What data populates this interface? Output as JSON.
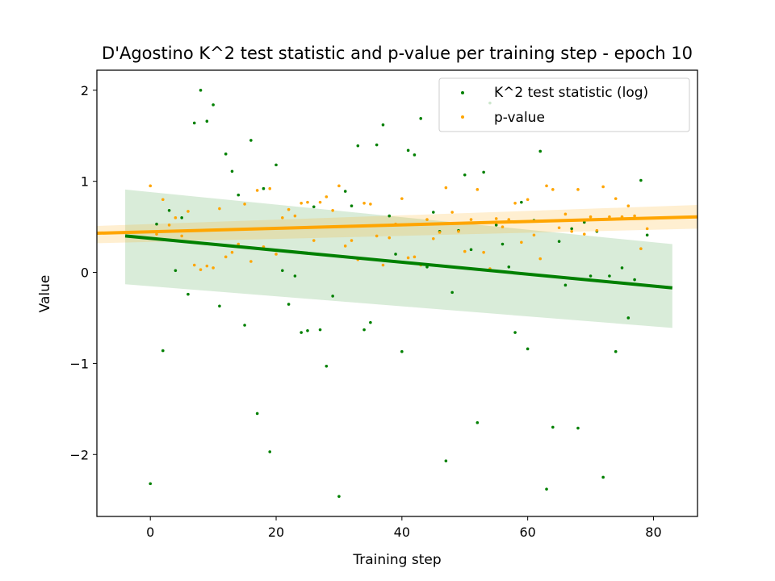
{
  "chart_data": {
    "type": "scatter",
    "title": "D'Agostino K^2 test statistic and p-value per training step - epoch 10",
    "xlabel": "Training step",
    "ylabel": "Value",
    "xlim": [
      -8.5,
      87
    ],
    "ylim": [
      -2.68,
      2.22
    ],
    "xticks": [
      0,
      20,
      40,
      60,
      80
    ],
    "xtick_labels": [
      "0",
      "20",
      "40",
      "60",
      "80"
    ],
    "yticks": [
      -2,
      -1,
      0,
      1,
      2
    ],
    "ytick_labels": [
      "−2",
      "−1",
      "0",
      "1",
      "2"
    ],
    "grid": false,
    "legend_position": "top-right",
    "series": [
      {
        "name": "K^2 test statistic (log)",
        "color": "#008000",
        "marker": "point",
        "x": [
          0,
          1,
          2,
          3,
          4,
          5,
          6,
          7,
          8,
          9,
          10,
          11,
          12,
          13,
          14,
          15,
          16,
          17,
          18,
          19,
          20,
          21,
          22,
          23,
          24,
          25,
          26,
          27,
          28,
          29,
          30,
          31,
          32,
          33,
          34,
          35,
          36,
          37,
          38,
          39,
          40,
          41,
          42,
          43,
          44,
          45,
          46,
          47,
          48,
          49,
          50,
          51,
          52,
          53,
          54,
          55,
          56,
          57,
          58,
          59,
          60,
          61,
          62,
          63,
          64,
          65,
          66,
          67,
          68,
          69,
          70,
          71,
          72,
          73,
          74,
          75,
          76,
          77,
          78,
          79
        ],
        "y": [
          -2.32,
          0.53,
          -0.86,
          0.68,
          0.02,
          0.6,
          -0.24,
          1.64,
          2.0,
          1.66,
          1.84,
          -0.37,
          1.3,
          1.11,
          0.85,
          -0.58,
          1.45,
          -1.55,
          0.92,
          -1.97,
          1.18,
          0.02,
          -0.35,
          -0.04,
          -0.66,
          -0.64,
          0.72,
          -0.63,
          -1.03,
          -0.26,
          -2.46,
          0.89,
          0.73,
          1.39,
          -0.63,
          -0.55,
          1.4,
          1.62,
          0.62,
          0.2,
          -0.87,
          1.34,
          1.29,
          1.69,
          0.06,
          0.66,
          0.45,
          -2.07,
          -0.22,
          0.46,
          1.07,
          0.25,
          -1.65,
          1.1,
          1.86,
          0.52,
          0.31,
          0.06,
          -0.66,
          0.77,
          -0.84,
          0.57,
          1.33,
          -2.38,
          -1.7,
          0.34,
          -0.14,
          0.48,
          -1.71,
          0.55,
          -0.04,
          0.45,
          -2.25,
          -0.04,
          -0.87,
          0.05,
          -0.5,
          -0.08,
          1.01,
          0.41
        ]
      },
      {
        "name": "p-value",
        "color": "#FFA500",
        "marker": "point",
        "x": [
          0,
          1,
          2,
          3,
          4,
          5,
          6,
          7,
          8,
          9,
          10,
          11,
          12,
          13,
          14,
          15,
          16,
          17,
          18,
          19,
          20,
          21,
          22,
          23,
          24,
          25,
          26,
          27,
          28,
          29,
          30,
          31,
          32,
          33,
          34,
          35,
          36,
          37,
          38,
          39,
          40,
          41,
          42,
          43,
          44,
          45,
          46,
          47,
          48,
          49,
          50,
          51,
          52,
          53,
          54,
          55,
          56,
          57,
          58,
          59,
          60,
          61,
          62,
          63,
          64,
          65,
          66,
          67,
          68,
          69,
          70,
          71,
          72,
          73,
          74,
          75,
          76,
          77,
          78,
          79
        ],
        "y": [
          0.95,
          0.42,
          0.8,
          0.52,
          0.6,
          0.4,
          0.67,
          0.08,
          0.03,
          0.07,
          0.05,
          0.7,
          0.17,
          0.22,
          0.31,
          0.75,
          0.12,
          0.9,
          0.28,
          0.92,
          0.2,
          0.6,
          0.69,
          0.62,
          0.76,
          0.77,
          0.35,
          0.77,
          0.83,
          0.68,
          0.95,
          0.29,
          0.35,
          0.14,
          0.76,
          0.75,
          0.4,
          0.08,
          0.38,
          0.53,
          0.81,
          0.16,
          0.17,
          0.08,
          0.58,
          0.37,
          0.44,
          0.93,
          0.66,
          0.45,
          0.23,
          0.58,
          0.91,
          0.22,
          0.04,
          0.59,
          0.5,
          0.58,
          0.76,
          0.33,
          0.8,
          0.41,
          0.15,
          0.95,
          0.91,
          0.49,
          0.64,
          0.45,
          0.91,
          0.42,
          0.61,
          0.46,
          0.94,
          0.61,
          0.81,
          0.61,
          0.73,
          0.62,
          0.26,
          0.48
        ]
      }
    ],
    "regression_lines": [
      {
        "series": "K^2 test statistic (log)",
        "color": "#008000",
        "x": [
          -4,
          83
        ],
        "y": [
          0.4,
          -0.17
        ],
        "ci_upper": [
          0.91,
          0.31
        ],
        "ci_lower": [
          -0.13,
          -0.61
        ]
      },
      {
        "series": "p-value",
        "color": "#FFA500",
        "x": [
          -8.5,
          87
        ],
        "y": [
          0.43,
          0.61
        ],
        "ci_upper": [
          0.51,
          0.74
        ],
        "ci_lower": [
          0.32,
          0.48
        ]
      }
    ]
  }
}
